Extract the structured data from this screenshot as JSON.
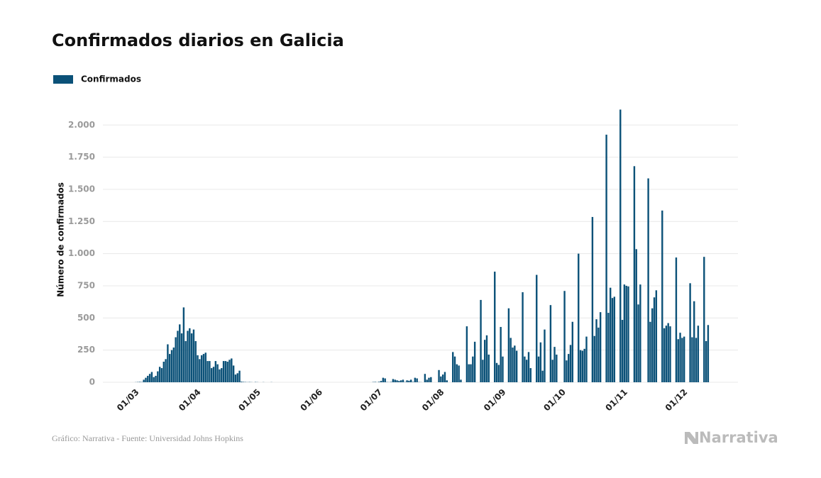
{
  "chart_data": {
    "type": "bar",
    "title": "Confirmados diarios en Galicia",
    "y_label": "Número de confirmados",
    "source": "Gráfico: Narrativa - Fuente: Universidad Johns Hopkins",
    "logo": "Narrativa",
    "grid": true,
    "legend": "top-left",
    "ylim": [
      0,
      2200
    ],
    "yticks": [
      0,
      250,
      500,
      750,
      {
        "value": 1000,
        "label": "1.000"
      },
      {
        "value": 1250,
        "label": "1.250"
      },
      {
        "value": 1500,
        "label": "1.500"
      },
      {
        "value": 1750,
        "label": "1.750"
      },
      {
        "value": 2000,
        "label": "2.000"
      }
    ],
    "categories": [
      "01/03",
      null,
      null,
      null,
      null,
      null,
      null,
      null,
      null,
      null,
      null,
      null,
      null,
      null,
      null,
      null,
      null,
      null,
      null,
      null,
      null,
      null,
      null,
      null,
      null,
      null,
      null,
      null,
      null,
      null,
      null,
      "01/04",
      null,
      null,
      null,
      null,
      null,
      null,
      null,
      null,
      null,
      null,
      null,
      null,
      null,
      null,
      null,
      null,
      null,
      null,
      null,
      null,
      null,
      null,
      null,
      null,
      null,
      null,
      null,
      null,
      null,
      "01/05",
      null,
      null,
      null,
      null,
      null,
      null,
      null,
      null,
      null,
      null,
      null,
      null,
      null,
      null,
      null,
      null,
      null,
      null,
      null,
      null,
      null,
      null,
      null,
      null,
      null,
      null,
      null,
      null,
      null,
      null,
      "01/06",
      null,
      null,
      null,
      null,
      null,
      null,
      null,
      null,
      null,
      null,
      null,
      null,
      null,
      null,
      null,
      null,
      null,
      null,
      null,
      null,
      null,
      null,
      null,
      null,
      null,
      null,
      null,
      null,
      null,
      "01/07",
      null,
      null,
      null,
      null,
      null,
      null,
      null,
      null,
      null,
      null,
      null,
      null,
      null,
      null,
      null,
      null,
      null,
      null,
      null,
      null,
      null,
      null,
      null,
      null,
      null,
      null,
      null,
      null,
      null,
      null,
      "01/08",
      null,
      null,
      null,
      null,
      null,
      null,
      null,
      null,
      null,
      null,
      null,
      null,
      null,
      null,
      null,
      null,
      null,
      null,
      null,
      null,
      null,
      null,
      null,
      null,
      null,
      null,
      null,
      null,
      null,
      null,
      "01/09",
      null,
      null,
      null,
      null,
      null,
      null,
      null,
      null,
      null,
      null,
      null,
      null,
      null,
      null,
      null,
      null,
      null,
      null,
      null,
      null,
      null,
      null,
      null,
      null,
      null,
      null,
      null,
      null,
      null,
      "01/10",
      null,
      null,
      null,
      null,
      null,
      null,
      null,
      null,
      null,
      null,
      null,
      null,
      null,
      null,
      null,
      null,
      null,
      null,
      null,
      null,
      null,
      null,
      null,
      null,
      null,
      null,
      null,
      null,
      null,
      null,
      "01/11",
      null,
      null,
      null,
      null,
      null,
      null,
      null,
      null,
      null,
      null,
      null,
      null,
      null,
      null,
      null,
      null,
      null,
      null,
      null,
      null,
      null,
      null,
      null,
      null,
      null,
      null,
      null,
      null,
      null,
      "01/12",
      null,
      null,
      null,
      null,
      null,
      null,
      null,
      null,
      null,
      null,
      null,
      null,
      null,
      null,
      null
    ],
    "series": [
      {
        "name": "Confirmados",
        "color": "#0b5178",
        "values": [
          0,
          0,
          0,
          1,
          2,
          3,
          2,
          20,
          35,
          50,
          65,
          80,
          40,
          50,
          85,
          120,
          110,
          160,
          180,
          295,
          220,
          250,
          270,
          350,
          400,
          450,
          380,
          582,
          320,
          400,
          420,
          380,
          410,
          320,
          210,
          180,
          210,
          220,
          230,
          165,
          165,
          110,
          120,
          165,
          140,
          100,
          110,
          165,
          165,
          160,
          175,
          185,
          130,
          60,
          70,
          90,
          5,
          3,
          2,
          1,
          2,
          1,
          0,
          2,
          1,
          0,
          0,
          1,
          0,
          0,
          0,
          1,
          0,
          0,
          0,
          0,
          0,
          0,
          0,
          0,
          0,
          0,
          0,
          0,
          0,
          0,
          0,
          0,
          0,
          0,
          0,
          0,
          0,
          0,
          0,
          0,
          0,
          0,
          0,
          0,
          0,
          0,
          0,
          0,
          0,
          0,
          0,
          0,
          0,
          0,
          0,
          0,
          0,
          0,
          0,
          0,
          0,
          0,
          0,
          0,
          0,
          0,
          2,
          3,
          1,
          4,
          10,
          35,
          30,
          2,
          1,
          3,
          25,
          20,
          15,
          10,
          15,
          20,
          2,
          15,
          12,
          20,
          3,
          35,
          30,
          2,
          1,
          0,
          65,
          20,
          35,
          40,
          0,
          0,
          0,
          95,
          45,
          60,
          80,
          15,
          0,
          0,
          235,
          200,
          140,
          130,
          20,
          0,
          0,
          435,
          140,
          140,
          200,
          315,
          0,
          0,
          640,
          175,
          330,
          365,
          215,
          0,
          0,
          860,
          150,
          135,
          430,
          200,
          0,
          0,
          575,
          345,
          270,
          285,
          245,
          0,
          0,
          700,
          200,
          175,
          235,
          110,
          0,
          0,
          835,
          200,
          310,
          90,
          410,
          0,
          0,
          600,
          175,
          275,
          215,
          0,
          0,
          0,
          710,
          170,
          220,
          290,
          470,
          0,
          0,
          1000,
          250,
          245,
          260,
          355,
          0,
          0,
          1285,
          360,
          490,
          425,
          545,
          0,
          0,
          1925,
          540,
          735,
          655,
          665,
          0,
          0,
          2120,
          485,
          760,
          750,
          745,
          0,
          0,
          1680,
          1035,
          605,
          760,
          0,
          0,
          0,
          1585,
          470,
          575,
          660,
          715,
          0,
          0,
          1335,
          420,
          440,
          460,
          435,
          0,
          0,
          970,
          335,
          385,
          345,
          355,
          0,
          0,
          770,
          350,
          630,
          345,
          440,
          0,
          0,
          975,
          320,
          445
        ]
      }
    ]
  }
}
